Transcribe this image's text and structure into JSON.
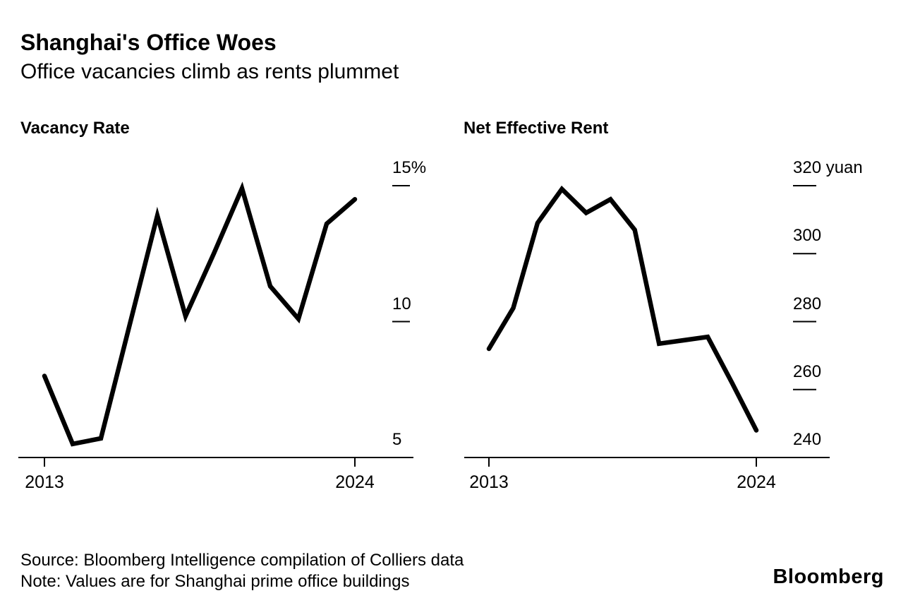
{
  "header": {
    "title": "Shanghai's Office Woes",
    "subtitle": "Office vacancies climb as rents plummet"
  },
  "footer": {
    "source": "Source: Bloomberg Intelligence compilation of Colliers data",
    "note": "Note: Values are for Shanghai prime office buildings",
    "logo": "Bloomberg"
  },
  "colors": {
    "background": "#ffffff",
    "line": "#000000",
    "axis": "#000000",
    "text": "#000000"
  },
  "chart_data": [
    {
      "type": "line",
      "title": "Vacancy Rate",
      "unit": "%",
      "x": [
        2013,
        2014,
        2015,
        2016,
        2017,
        2018,
        2019,
        2020,
        2021,
        2022,
        2023,
        2024
      ],
      "values": [
        8.0,
        5.5,
        5.7,
        9.8,
        13.9,
        10.2,
        12.5,
        14.9,
        11.3,
        10.1,
        13.6,
        14.5
      ],
      "ylim": [
        5,
        16
      ],
      "grid": false,
      "legend": "none",
      "yticks": [
        {
          "value": 15,
          "label": "15%"
        },
        {
          "value": 10,
          "label": "10"
        },
        {
          "value": 5,
          "label": "5",
          "no_dash": true
        }
      ],
      "xtick_labels": [
        "2013",
        "2024"
      ]
    },
    {
      "type": "line",
      "title": "Net Effective Rent",
      "unit": "yuan",
      "x": [
        2013,
        2014,
        2015,
        2016,
        2017,
        2018,
        2019,
        2020,
        2021,
        2022,
        2023,
        2024
      ],
      "values": [
        272,
        284,
        309,
        319,
        312,
        316,
        307,
        273.5,
        274.5,
        275.5,
        262,
        248
      ],
      "ylim": [
        240,
        328
      ],
      "grid": false,
      "legend": "none",
      "yticks": [
        {
          "value": 320,
          "label": "320 yuan"
        },
        {
          "value": 300,
          "label": "300"
        },
        {
          "value": 280,
          "label": "280"
        },
        {
          "value": 260,
          "label": "260"
        },
        {
          "value": 240,
          "label": "240",
          "no_dash": true
        }
      ],
      "xtick_labels": [
        "2013",
        "2024"
      ]
    }
  ]
}
